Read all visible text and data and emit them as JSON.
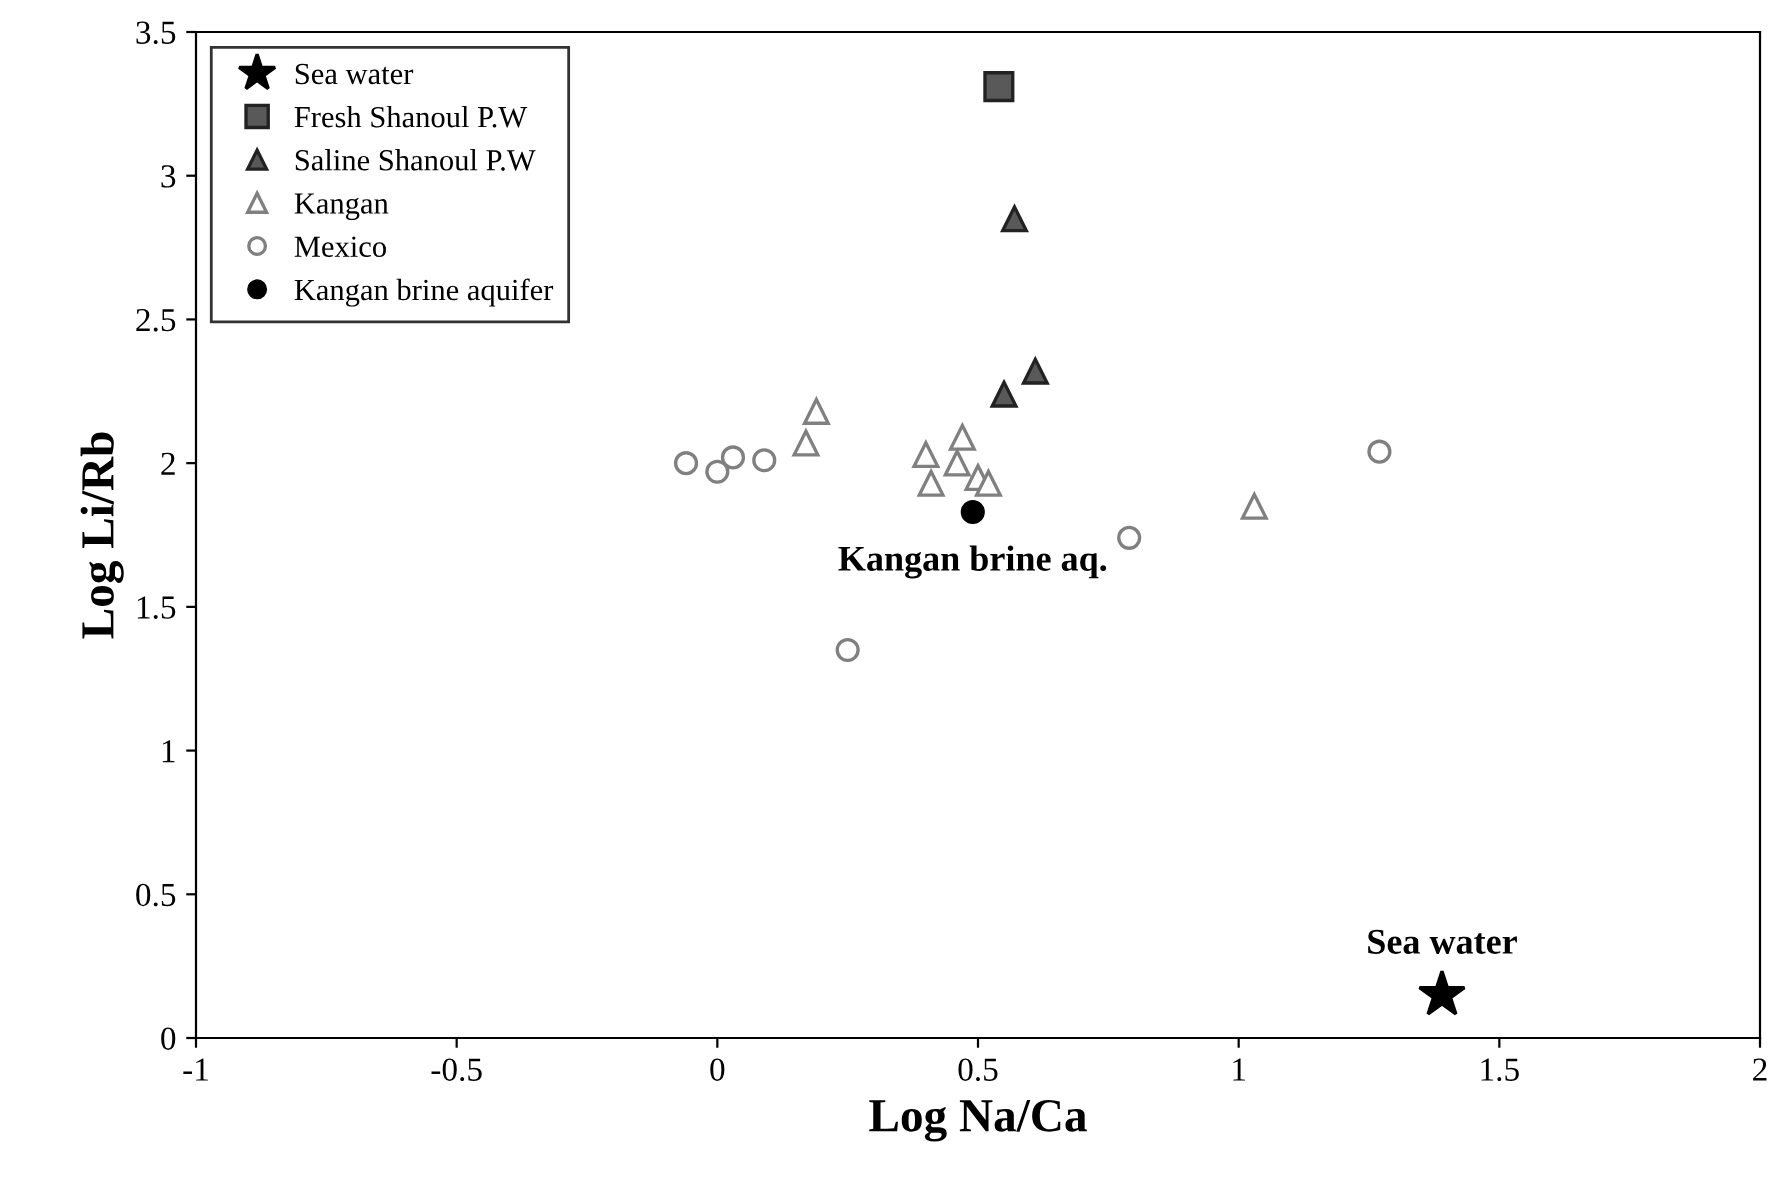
{
  "chart_data": {
    "type": "scatter",
    "xlabel": "Log Na/Ca",
    "ylabel": "Log Li/Rb",
    "xlim": [
      -1,
      2
    ],
    "ylim": [
      0,
      3.5
    ],
    "xticks": [
      -1,
      -0.5,
      0,
      0.5,
      1,
      1.5,
      2
    ],
    "yticks": [
      0,
      0.5,
      1,
      1.5,
      2,
      2.5,
      3,
      3.5
    ],
    "grid": false,
    "legend": "top left",
    "series": [
      {
        "name": "Sea water",
        "color": "#000000",
        "marker": "star",
        "x": [
          1.39
        ],
        "values": [
          0.15
        ]
      },
      {
        "name": "Fresh Shanoul P.W",
        "color": "#595959",
        "marker": "square",
        "x": [
          0.54
        ],
        "values": [
          3.31
        ]
      },
      {
        "name": "Saline Shanoul P.W",
        "color": "#595959",
        "marker": "triangle",
        "x": [
          0.57,
          0.61,
          0.55
        ],
        "values": [
          2.85,
          2.32,
          2.24
        ]
      },
      {
        "name": "Kangan",
        "color": "#808080",
        "marker": "triangle",
        "x": [
          0.19,
          0.17,
          0.4,
          0.47,
          0.46,
          0.41,
          0.5,
          0.52,
          1.03
        ],
        "values": [
          2.18,
          2.07,
          2.03,
          2.09,
          2.0,
          1.93,
          1.95,
          1.93,
          1.85
        ]
      },
      {
        "name": "Mexico",
        "color": "#808080",
        "marker": "circle",
        "x": [
          -0.06,
          0.0,
          0.03,
          0.09,
          0.25,
          0.79,
          1.27
        ],
        "values": [
          2.0,
          1.97,
          2.02,
          2.01,
          1.35,
          1.74,
          2.04
        ]
      },
      {
        "name": "Kangan brine aquifer",
        "color": "#000000",
        "marker": "circle",
        "x": [
          0.49
        ],
        "values": [
          1.83
        ]
      }
    ],
    "annotations": [
      {
        "text": "Kangan brine aq.",
        "x": 0.49,
        "y": 1.83
      },
      {
        "text": "Sea water",
        "x": 1.39,
        "y": 0.15
      }
    ]
  }
}
